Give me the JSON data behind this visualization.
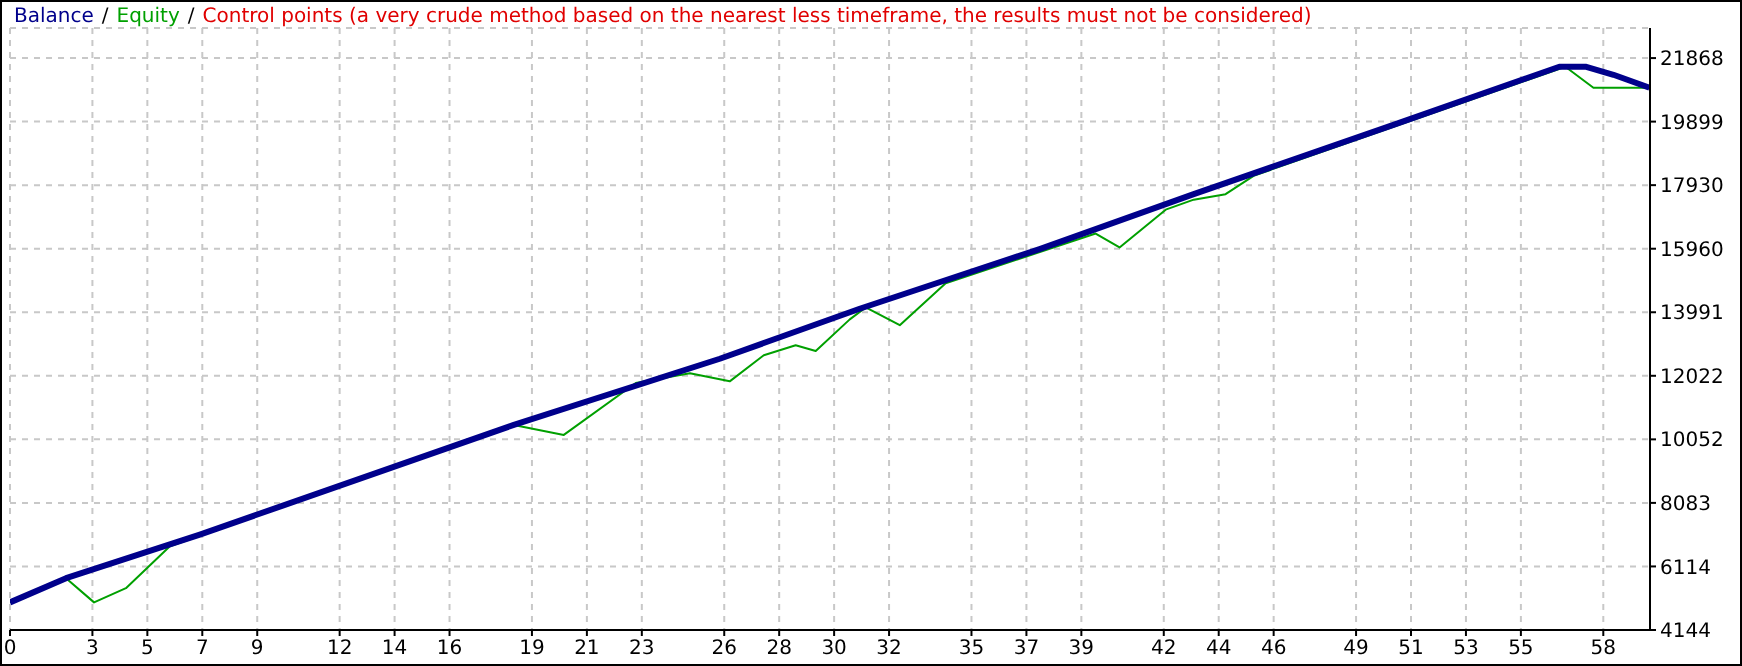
{
  "chart_data": {
    "type": "line",
    "legend": "top left",
    "grid": true,
    "line_style": "solid",
    "annotations": [
      "/",
      "/",
      "Control points (a very crude method based on the nearest less timeframe, the results must not be considered)"
    ],
    "xlim": [
      0,
      59.7
    ],
    "xticks": [
      0,
      3,
      5,
      7,
      9,
      12,
      14,
      16,
      19,
      21,
      23,
      26,
      28,
      30,
      32,
      35,
      37,
      39,
      42,
      44,
      46,
      49,
      51,
      53,
      55,
      58
    ],
    "ylim": [
      4144,
      22800
    ],
    "yticks": [
      4144,
      6114,
      8083,
      10052,
      12022,
      13991,
      15960,
      17930,
      19899,
      21868
    ],
    "series": [
      {
        "name": "Equity",
        "color": "#00a000",
        "x": [
          0,
          2.04,
          3.06,
          4.22,
          5.82,
          18.34,
          20.16,
          22.78,
          24.75,
          26.2,
          27.44,
          28.6,
          29.33,
          30.57,
          31.15,
          32.39,
          34.06,
          39.52,
          40.39,
          42.07,
          43.09,
          44.25,
          45.27,
          56.62,
          57.64,
          59.68
        ],
        "values": [
          5000,
          5750,
          5000,
          5440,
          6740,
          10500,
          10190,
          11800,
          12100,
          11850,
          12660,
          12970,
          12790,
          13770,
          14140,
          13590,
          14890,
          16430,
          16000,
          17170,
          17480,
          17650,
          18220,
          21600,
          20950,
          20950
        ]
      },
      {
        "name": "Balance",
        "color": "#00008b",
        "x": [
          0,
          2.04,
          6.91,
          18.34,
          25.84,
          30.93,
          37.48,
          43.09,
          50.36,
          56.4,
          57.35,
          58.37,
          59.68
        ],
        "values": [
          5000,
          5750,
          7100,
          10500,
          12550,
          14100,
          15950,
          17650,
          19800,
          21600,
          21600,
          21350,
          20950
        ]
      }
    ]
  }
}
